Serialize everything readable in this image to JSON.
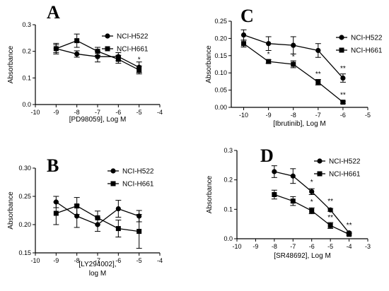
{
  "chart_data": [
    {
      "type": "line",
      "panel": "A",
      "xlabel": "[PD98059], Log M",
      "ylabel": "Absorbance",
      "xlim": [
        -10,
        -4
      ],
      "ylim": [
        0.0,
        0.3
      ],
      "xticks": [
        "-10",
        "-9",
        "-8",
        "-7",
        "-6",
        "-5",
        "-4"
      ],
      "yticks": [
        "0.0",
        "0.1",
        "0.2",
        "0.3"
      ],
      "legend": "top-right",
      "series": [
        {
          "name": "NCI-H522",
          "marker": "circle",
          "x": [
            -9,
            -8,
            -7,
            -6,
            -5
          ],
          "y": [
            0.21,
            0.19,
            0.18,
            0.18,
            0.14
          ],
          "err": [
            0.015,
            0.012,
            0.02,
            0.015,
            0.02
          ]
        },
        {
          "name": "NCI-H661",
          "marker": "square",
          "x": [
            -9,
            -8,
            -7,
            -6,
            -5
          ],
          "y": [
            0.21,
            0.24,
            0.2,
            0.17,
            0.13
          ],
          "err": [
            0.02,
            0.025,
            0.015,
            0.015,
            0.015
          ]
        }
      ],
      "annotations": [
        {
          "text": "*",
          "x": -5,
          "y": 0.16
        }
      ]
    },
    {
      "type": "line",
      "panel": "C",
      "xlabel": "[Ibrutinib], Log M",
      "ylabel": "Absorbance",
      "xlim": [
        -10.5,
        -5
      ],
      "ylim": [
        0.0,
        0.25
      ],
      "xticks": [
        "-10",
        "-9",
        "-8",
        "-7",
        "-6",
        "-5"
      ],
      "yticks": [
        "0.00",
        "0.05",
        "0.10",
        "0.15",
        "0.20",
        "0.25"
      ],
      "legend": "top-right",
      "series": [
        {
          "name": "NCI-H522",
          "marker": "circle",
          "x": [
            -10,
            -9,
            -8,
            -7,
            -6
          ],
          "y": [
            0.21,
            0.185,
            0.18,
            0.165,
            0.085
          ],
          "err": [
            0.015,
            0.02,
            0.025,
            0.02,
            0.012
          ]
        },
        {
          "name": "NCI-H661",
          "marker": "square",
          "x": [
            -10,
            -9,
            -8,
            -7,
            -6
          ],
          "y": [
            0.185,
            0.133,
            0.125,
            0.073,
            0.015
          ],
          "err": [
            0.01,
            0.005,
            0.01,
            0.008,
            0.003
          ]
        }
      ],
      "annotations": [
        {
          "text": "*",
          "x": -9,
          "y": 0.148
        },
        {
          "text": "*",
          "x": -8,
          "y": 0.14
        },
        {
          "text": "**",
          "x": -7,
          "y": 0.09
        },
        {
          "text": "**",
          "x": -6,
          "y": 0.107
        },
        {
          "text": "**",
          "x": -6,
          "y": 0.03
        }
      ]
    },
    {
      "type": "line",
      "panel": "B",
      "xlabel": "[LY294002],",
      "xlabel2": "log M",
      "ylabel": "Absorbance",
      "xlim": [
        -10,
        -4
      ],
      "ylim": [
        0.15,
        0.3
      ],
      "xticks": [
        "-10",
        "-9",
        "-8",
        "-7",
        "-6",
        "-5",
        "-4"
      ],
      "yticks": [
        "0.15",
        "0.20",
        "0.25",
        "0.30"
      ],
      "legend": "top-right",
      "series": [
        {
          "name": "NCI-H522",
          "marker": "circle",
          "x": [
            -9,
            -8,
            -7,
            -6,
            -5
          ],
          "y": [
            0.24,
            0.215,
            0.2,
            0.228,
            0.215
          ],
          "err": [
            0.01,
            0.02,
            0.012,
            0.015,
            0.01
          ]
        },
        {
          "name": "NCI-H661",
          "marker": "square",
          "x": [
            -9,
            -8,
            -7,
            -6,
            -5
          ],
          "y": [
            0.22,
            0.233,
            0.212,
            0.193,
            0.188
          ],
          "err": [
            0.02,
            0.015,
            0.012,
            0.015,
            0.03
          ]
        }
      ],
      "annotations": []
    },
    {
      "type": "line",
      "panel": "D",
      "xlabel": "[SR48692], Log M",
      "ylabel": "Absorbance",
      "xlim": [
        -10,
        -3
      ],
      "ylim": [
        0.0,
        0.3
      ],
      "xticks": [
        "-10",
        "-9",
        "-8",
        "-7",
        "-6",
        "-5",
        "-4",
        "-3"
      ],
      "yticks": [
        "0.0",
        "0.1",
        "0.2",
        "0.3"
      ],
      "legend": "top-right",
      "series": [
        {
          "name": "NCI-H522",
          "marker": "circle",
          "x": [
            -8,
            -7,
            -6,
            -5,
            -4
          ],
          "y": [
            0.228,
            0.213,
            0.16,
            0.098,
            0.02
          ],
          "err": [
            0.02,
            0.025,
            0.01,
            0.005,
            0.003
          ]
        },
        {
          "name": "NCI-H661",
          "marker": "square",
          "x": [
            -8,
            -7,
            -6,
            -5,
            -4
          ],
          "y": [
            0.15,
            0.128,
            0.095,
            0.045,
            0.015
          ],
          "err": [
            0.015,
            0.015,
            0.01,
            0.01,
            0.003
          ]
        }
      ],
      "annotations": [
        {
          "text": "*",
          "x": -6,
          "y": 0.185
        },
        {
          "text": "*",
          "x": -6,
          "y": 0.118
        },
        {
          "text": "**",
          "x": -5,
          "y": 0.12
        },
        {
          "text": "**",
          "x": -5,
          "y": 0.065
        },
        {
          "text": "**",
          "x": -4,
          "y": 0.038
        }
      ]
    }
  ]
}
